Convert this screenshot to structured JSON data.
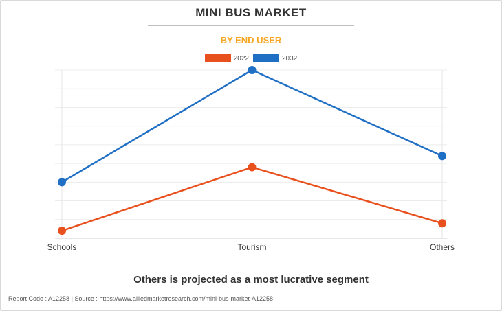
{
  "header": {
    "title": "MINI BUS MARKET",
    "subtitle": "BY END USER"
  },
  "footer": {
    "headline": "Others is projected as a most lucrative segment",
    "report_code": "Report Code : A12258  |  Source : https://www.alliedmarketresearch.com/mini-bus-market-A12258"
  },
  "colors": {
    "accent": "#f5a623",
    "series_2022": "#e8501e",
    "series_2032": "#1f6fc5"
  },
  "chart_data": {
    "type": "line",
    "title": "MINI BUS MARKET",
    "subtitle": "BY END USER",
    "categories": [
      "Schools",
      "Tourism",
      "Others"
    ],
    "series": [
      {
        "name": "2022",
        "color": "#e8501e",
        "values": [
          4,
          38,
          8
        ]
      },
      {
        "name": "2032",
        "color": "#1f6fc5",
        "values": [
          30,
          90,
          44
        ]
      }
    ],
    "ylim": [
      0,
      90
    ],
    "xlabel": "",
    "ylabel": "",
    "grid": true,
    "legend": "top-center"
  }
}
